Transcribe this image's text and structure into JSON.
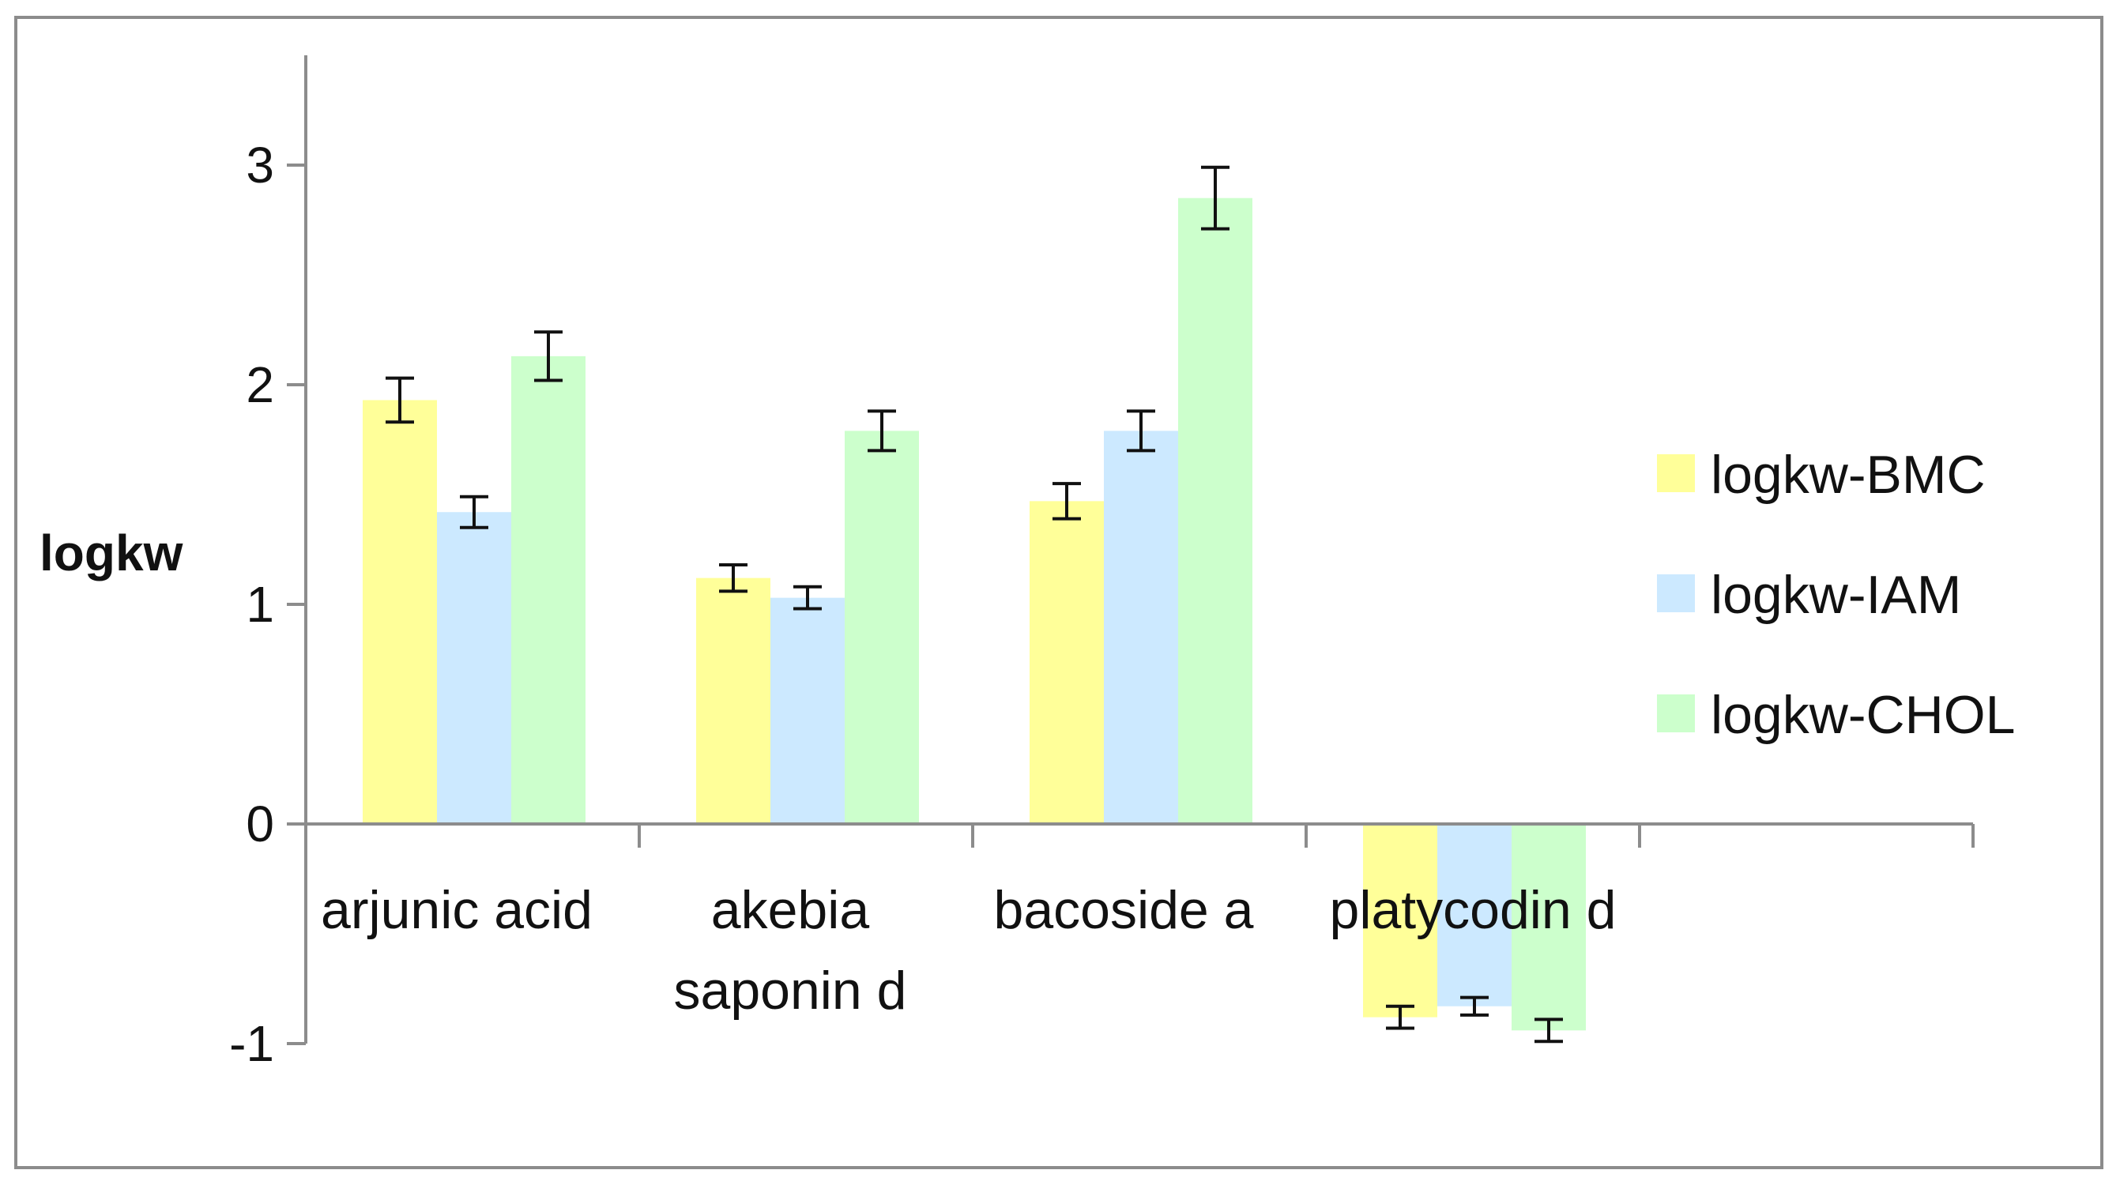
{
  "chart_data": {
    "type": "bar",
    "title": "",
    "xlabel": "",
    "ylabel": "logkw",
    "ylim": [
      -1,
      3.5
    ],
    "yticks": [
      -1,
      0,
      1,
      2,
      3
    ],
    "grid": false,
    "legend_position": "right",
    "categories": [
      [
        "arjunic acid"
      ],
      [
        "akebia",
        "saponin d"
      ],
      [
        "bacoside a"
      ],
      [
        "platycodin d"
      ]
    ],
    "series": [
      {
        "name": "logkw-BMC",
        "color": "#ffff99",
        "values": [
          1.93,
          1.12,
          1.47,
          -0.88
        ],
        "errors": [
          0.1,
          0.06,
          0.08,
          0.05
        ]
      },
      {
        "name": "logkw-IAM",
        "color": "#cce9ff",
        "values": [
          1.42,
          1.03,
          1.79,
          -0.83
        ],
        "errors": [
          0.07,
          0.05,
          0.09,
          0.04
        ]
      },
      {
        "name": "logkw-CHOL",
        "color": "#ccffcc",
        "values": [
          2.13,
          1.79,
          2.85,
          -0.94
        ],
        "errors": [
          0.11,
          0.09,
          0.14,
          0.05
        ]
      }
    ]
  }
}
